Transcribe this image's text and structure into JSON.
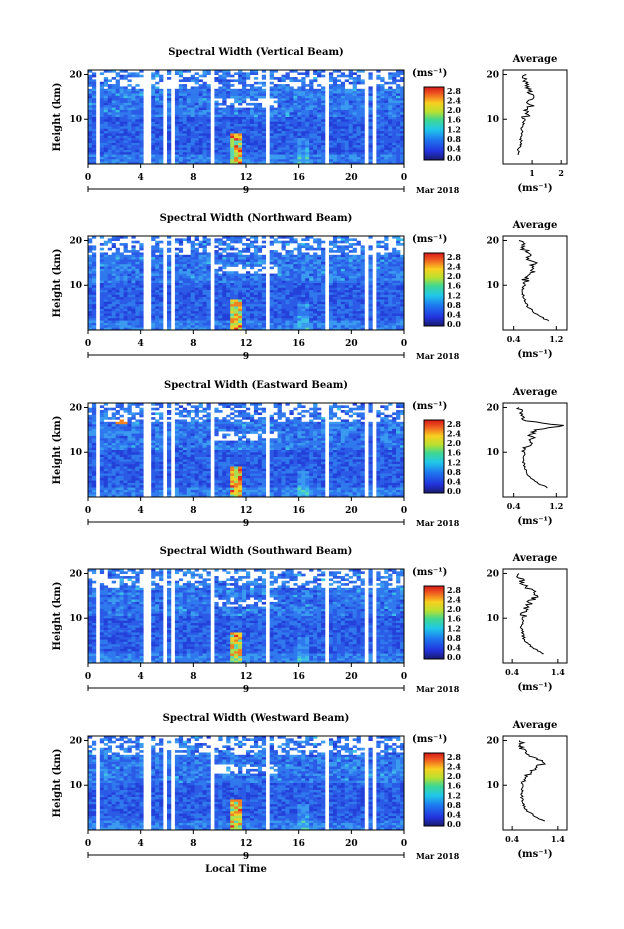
{
  "chart_data": [
    {
      "type": "heatmap",
      "title": "Spectral Width (Vertical Beam)",
      "ylabel": "Height (km)",
      "y_ticks": [
        "20",
        "10"
      ],
      "x_ticks": [
        "0",
        "4",
        "8",
        "12",
        "16",
        "20",
        "0"
      ],
      "date_label": "9",
      "date_suffix": "Mar 2018",
      "colorbar_unit": "(ms⁻¹)",
      "colorbar_ticks": [
        "2.8",
        "2.4",
        "2.0",
        "1.6",
        "1.2",
        "0.8",
        "0.4",
        "0.0"
      ],
      "average_title": "Average",
      "average_xlabel": "(ms⁻¹)",
      "average_x_ticks": [
        "1",
        "2"
      ],
      "average_y_ticks": [
        "20",
        "10"
      ],
      "average_xlim": [
        0,
        2.2
      ],
      "average_profile": [
        [
          2,
          0.55
        ],
        [
          3,
          0.52
        ],
        [
          4,
          0.58
        ],
        [
          5,
          0.62
        ],
        [
          6,
          0.6
        ],
        [
          7,
          0.66
        ],
        [
          8,
          0.64
        ],
        [
          9,
          0.7
        ],
        [
          10,
          0.74
        ],
        [
          11,
          0.8
        ],
        [
          12,
          0.78
        ],
        [
          13,
          0.95
        ],
        [
          14,
          0.88
        ],
        [
          15,
          1.05
        ],
        [
          16,
          0.92
        ],
        [
          17,
          0.9
        ],
        [
          18,
          0.85
        ],
        [
          19,
          0.78
        ],
        [
          20,
          0.8
        ]
      ]
    },
    {
      "type": "heatmap",
      "title": "Spectral Width (Northward Beam)",
      "ylabel": "Height (km)",
      "y_ticks": [
        "20",
        "10"
      ],
      "x_ticks": [
        "0",
        "4",
        "8",
        "12",
        "16",
        "20",
        "0"
      ],
      "date_label": "9",
      "date_suffix": "Mar 2018",
      "colorbar_unit": "(ms⁻¹)",
      "colorbar_ticks": [
        "2.8",
        "2.4",
        "2.0",
        "1.6",
        "1.2",
        "0.8",
        "0.4",
        "0.0"
      ],
      "average_title": "Average",
      "average_xlabel": "(ms⁻¹)",
      "average_x_ticks": [
        "0.4",
        "1.2"
      ],
      "average_y_ticks": [
        "20",
        "10"
      ],
      "average_xlim": [
        0.2,
        1.4
      ],
      "average_profile": [
        [
          2,
          1.05
        ],
        [
          3,
          0.9
        ],
        [
          4,
          0.78
        ],
        [
          5,
          0.68
        ],
        [
          6,
          0.62
        ],
        [
          7,
          0.6
        ],
        [
          8,
          0.58
        ],
        [
          9,
          0.57
        ],
        [
          10,
          0.6
        ],
        [
          11,
          0.62
        ],
        [
          12,
          0.6
        ],
        [
          13,
          0.72
        ],
        [
          14,
          0.7
        ],
        [
          15,
          0.82
        ],
        [
          16,
          0.68
        ],
        [
          17,
          0.72
        ],
        [
          18,
          0.6
        ],
        [
          19,
          0.55
        ],
        [
          20,
          0.5
        ]
      ]
    },
    {
      "type": "heatmap",
      "title": "Spectral Width (Eastward Beam)",
      "ylabel": "Height (km)",
      "y_ticks": [
        "20",
        "10"
      ],
      "x_ticks": [
        "0",
        "4",
        "8",
        "12",
        "16",
        "20",
        "0"
      ],
      "date_label": "9",
      "date_suffix": "Mar 2018",
      "colorbar_unit": "(ms⁻¹)",
      "colorbar_ticks": [
        "2.8",
        "2.4",
        "2.0",
        "1.6",
        "1.2",
        "0.8",
        "0.4",
        "0.0"
      ],
      "average_title": "Average",
      "average_xlabel": "(ms⁻¹)",
      "average_x_ticks": [
        "0.4",
        "1.2"
      ],
      "average_y_ticks": [
        "20",
        "10"
      ],
      "average_xlim": [
        0.2,
        1.4
      ],
      "average_profile": [
        [
          2,
          1.05
        ],
        [
          3,
          0.88
        ],
        [
          4,
          0.75
        ],
        [
          5,
          0.66
        ],
        [
          6,
          0.62
        ],
        [
          7,
          0.6
        ],
        [
          8,
          0.58
        ],
        [
          9,
          0.6
        ],
        [
          10,
          0.62
        ],
        [
          11,
          0.65
        ],
        [
          12,
          0.7
        ],
        [
          13,
          0.78
        ],
        [
          14,
          0.72
        ],
        [
          15,
          0.85
        ],
        [
          16,
          1.3
        ],
        [
          17,
          0.62
        ],
        [
          18,
          0.55
        ],
        [
          19,
          0.52
        ],
        [
          20,
          0.5
        ]
      ]
    },
    {
      "type": "heatmap",
      "title": "Spectral Width (Southward Beam)",
      "ylabel": "Height (km)",
      "y_ticks": [
        "20",
        "10"
      ],
      "x_ticks": [
        "0",
        "4",
        "8",
        "12",
        "16",
        "20",
        "0"
      ],
      "date_label": "9",
      "date_suffix": "Mar 2018",
      "colorbar_unit": "(ms⁻¹)",
      "colorbar_ticks": [
        "2.8",
        "2.4",
        "2.0",
        "1.6",
        "1.2",
        "0.8",
        "0.4",
        "0.0"
      ],
      "average_title": "Average",
      "average_xlabel": "(ms⁻¹)",
      "average_x_ticks": [
        "0.4",
        "1.4"
      ],
      "average_y_ticks": [
        "20",
        "10"
      ],
      "average_xlim": [
        0.2,
        1.6
      ],
      "average_profile": [
        [
          2,
          1.1
        ],
        [
          3,
          0.92
        ],
        [
          4,
          0.78
        ],
        [
          5,
          0.68
        ],
        [
          6,
          0.64
        ],
        [
          7,
          0.62
        ],
        [
          8,
          0.6
        ],
        [
          9,
          0.62
        ],
        [
          10,
          0.64
        ],
        [
          11,
          0.66
        ],
        [
          12,
          0.7
        ],
        [
          13,
          0.78
        ],
        [
          14,
          0.82
        ],
        [
          15,
          0.95
        ],
        [
          16,
          0.88
        ],
        [
          17,
          0.7
        ],
        [
          18,
          0.62
        ],
        [
          19,
          0.58
        ],
        [
          20,
          0.55
        ]
      ]
    },
    {
      "type": "heatmap",
      "title": "Spectral Width (Westward Beam)",
      "ylabel": "Height (km)",
      "y_ticks": [
        "20",
        "10"
      ],
      "x_ticks": [
        "0",
        "4",
        "8",
        "12",
        "16",
        "20",
        "0"
      ],
      "date_label": "9",
      "date_suffix": "Mar 2018",
      "xlabel": "Local Time",
      "colorbar_unit": "(ms⁻¹)",
      "colorbar_ticks": [
        "2.8",
        "2.4",
        "2.0",
        "1.6",
        "1.2",
        "0.8",
        "0.4",
        "0.0"
      ],
      "average_title": "Average",
      "average_xlabel": "(ms⁻¹)",
      "average_x_ticks": [
        "0.4",
        "1.4"
      ],
      "average_y_ticks": [
        "20",
        "10"
      ],
      "average_xlim": [
        0.2,
        1.6
      ],
      "average_profile": [
        [
          2,
          1.1
        ],
        [
          3,
          0.9
        ],
        [
          4,
          0.76
        ],
        [
          5,
          0.68
        ],
        [
          6,
          0.64
        ],
        [
          7,
          0.62
        ],
        [
          8,
          0.6
        ],
        [
          9,
          0.62
        ],
        [
          10,
          0.66
        ],
        [
          11,
          0.68
        ],
        [
          12,
          0.72
        ],
        [
          13,
          0.8
        ],
        [
          14,
          0.9
        ],
        [
          15,
          1.1
        ],
        [
          16,
          0.95
        ],
        [
          17,
          0.75
        ],
        [
          18,
          0.65
        ],
        [
          19,
          0.6
        ],
        [
          20,
          0.56
        ]
      ]
    }
  ]
}
